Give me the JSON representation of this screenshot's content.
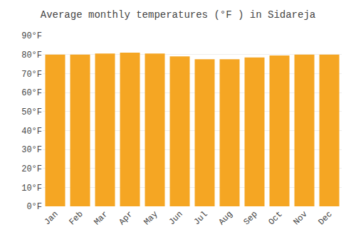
{
  "chart_data": {
    "type": "bar",
    "title": "Average monthly temperatures (°F ) in Sidareja",
    "categories": [
      "Jan",
      "Feb",
      "Mar",
      "Apr",
      "May",
      "Jun",
      "Jul",
      "Aug",
      "Sep",
      "Oct",
      "Nov",
      "Dec"
    ],
    "values": [
      80.0,
      80.0,
      80.5,
      81.0,
      80.5,
      79.0,
      77.5,
      77.5,
      78.5,
      79.5,
      80.0,
      80.0
    ],
    "color": "#F5A623",
    "ylim": [
      0,
      90
    ],
    "yticks": [
      {
        "value": 0,
        "label": "0°F"
      },
      {
        "value": 10,
        "label": "10°F"
      },
      {
        "value": 20,
        "label": "20°F"
      },
      {
        "value": 30,
        "label": "30°F"
      },
      {
        "value": 40,
        "label": "40°F"
      },
      {
        "value": 50,
        "label": "50°F"
      },
      {
        "value": 60,
        "label": "60°F"
      },
      {
        "value": 70,
        "label": "70°F"
      },
      {
        "value": 80,
        "label": "80°F"
      },
      {
        "value": 90,
        "label": "90°F"
      }
    ],
    "grid": true
  }
}
